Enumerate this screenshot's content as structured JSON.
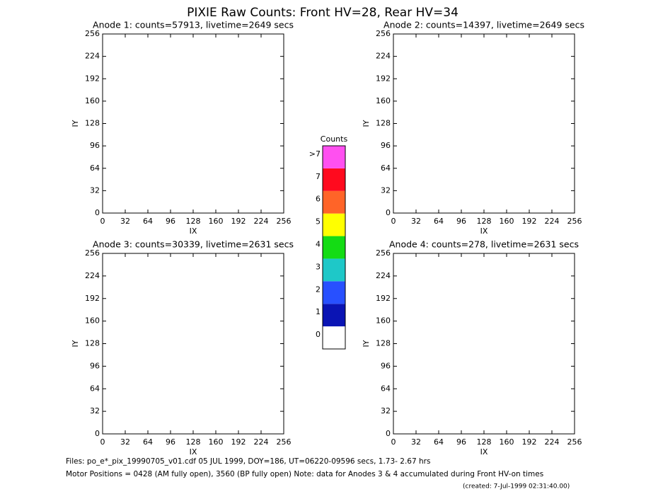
{
  "title": "PIXIE Raw Counts:  Front HV=28, Rear HV=34",
  "chart_data": [
    {
      "type": "heatmap",
      "title": "Anode 1: counts=57913, livetime=2649 secs",
      "xlabel": "IX",
      "ylabel": "IY",
      "xlim": [
        0,
        256
      ],
      "ylim": [
        0,
        256
      ],
      "xticks": [
        0,
        32,
        64,
        96,
        128,
        160,
        192,
        224,
        256
      ],
      "yticks": [
        0,
        32,
        64,
        96,
        128,
        160,
        192,
        224,
        256
      ]
    },
    {
      "type": "heatmap",
      "title": "Anode 2: counts=14397, livetime=2649 secs",
      "xlabel": "IX",
      "ylabel": "IY",
      "xlim": [
        0,
        256
      ],
      "ylim": [
        0,
        256
      ],
      "xticks": [
        0,
        32,
        64,
        96,
        128,
        160,
        192,
        224,
        256
      ],
      "yticks": [
        0,
        32,
        64,
        96,
        128,
        160,
        192,
        224,
        256
      ]
    },
    {
      "type": "heatmap",
      "title": "Anode 3: counts=30339, livetime=2631 secs",
      "xlabel": "IX",
      "ylabel": "IY",
      "xlim": [
        0,
        256
      ],
      "ylim": [
        0,
        256
      ],
      "xticks": [
        0,
        32,
        64,
        96,
        128,
        160,
        192,
        224,
        256
      ],
      "yticks": [
        0,
        32,
        64,
        96,
        128,
        160,
        192,
        224,
        256
      ]
    },
    {
      "type": "heatmap",
      "title": "Anode 4: counts=278, livetime=2631 secs",
      "xlabel": "IX",
      "ylabel": "IY",
      "xlim": [
        0,
        256
      ],
      "ylim": [
        0,
        256
      ],
      "xticks": [
        0,
        32,
        64,
        96,
        128,
        160,
        192,
        224,
        256
      ],
      "yticks": [
        0,
        32,
        64,
        96,
        128,
        160,
        192,
        224,
        256
      ]
    }
  ],
  "colorbar": {
    "title": "Counts",
    "labels": [
      "0",
      "1",
      "2",
      "3",
      "4",
      "5",
      "6",
      "7",
      ">7"
    ],
    "colors": [
      "#ffffff",
      "#0a14b4",
      "#2850ff",
      "#1ec8c8",
      "#14dc14",
      "#ffff00",
      "#ff6428",
      "#ff0a1e",
      "#ff50f0"
    ]
  },
  "footer": [
    "Files: po_e*_pix_19990705_v01.cdf    05 JUL 1999, DOY=186, UT=06220-09596 secs,  1.73- 2.67 hrs",
    "Motor Positions = 0428 (AM fully open), 3560 (BP fully open)    Note: data for Anodes 3 & 4 accumulated during Front HV-on times",
    "(created:  7-Jul-1999 02:31:40.00)"
  ]
}
